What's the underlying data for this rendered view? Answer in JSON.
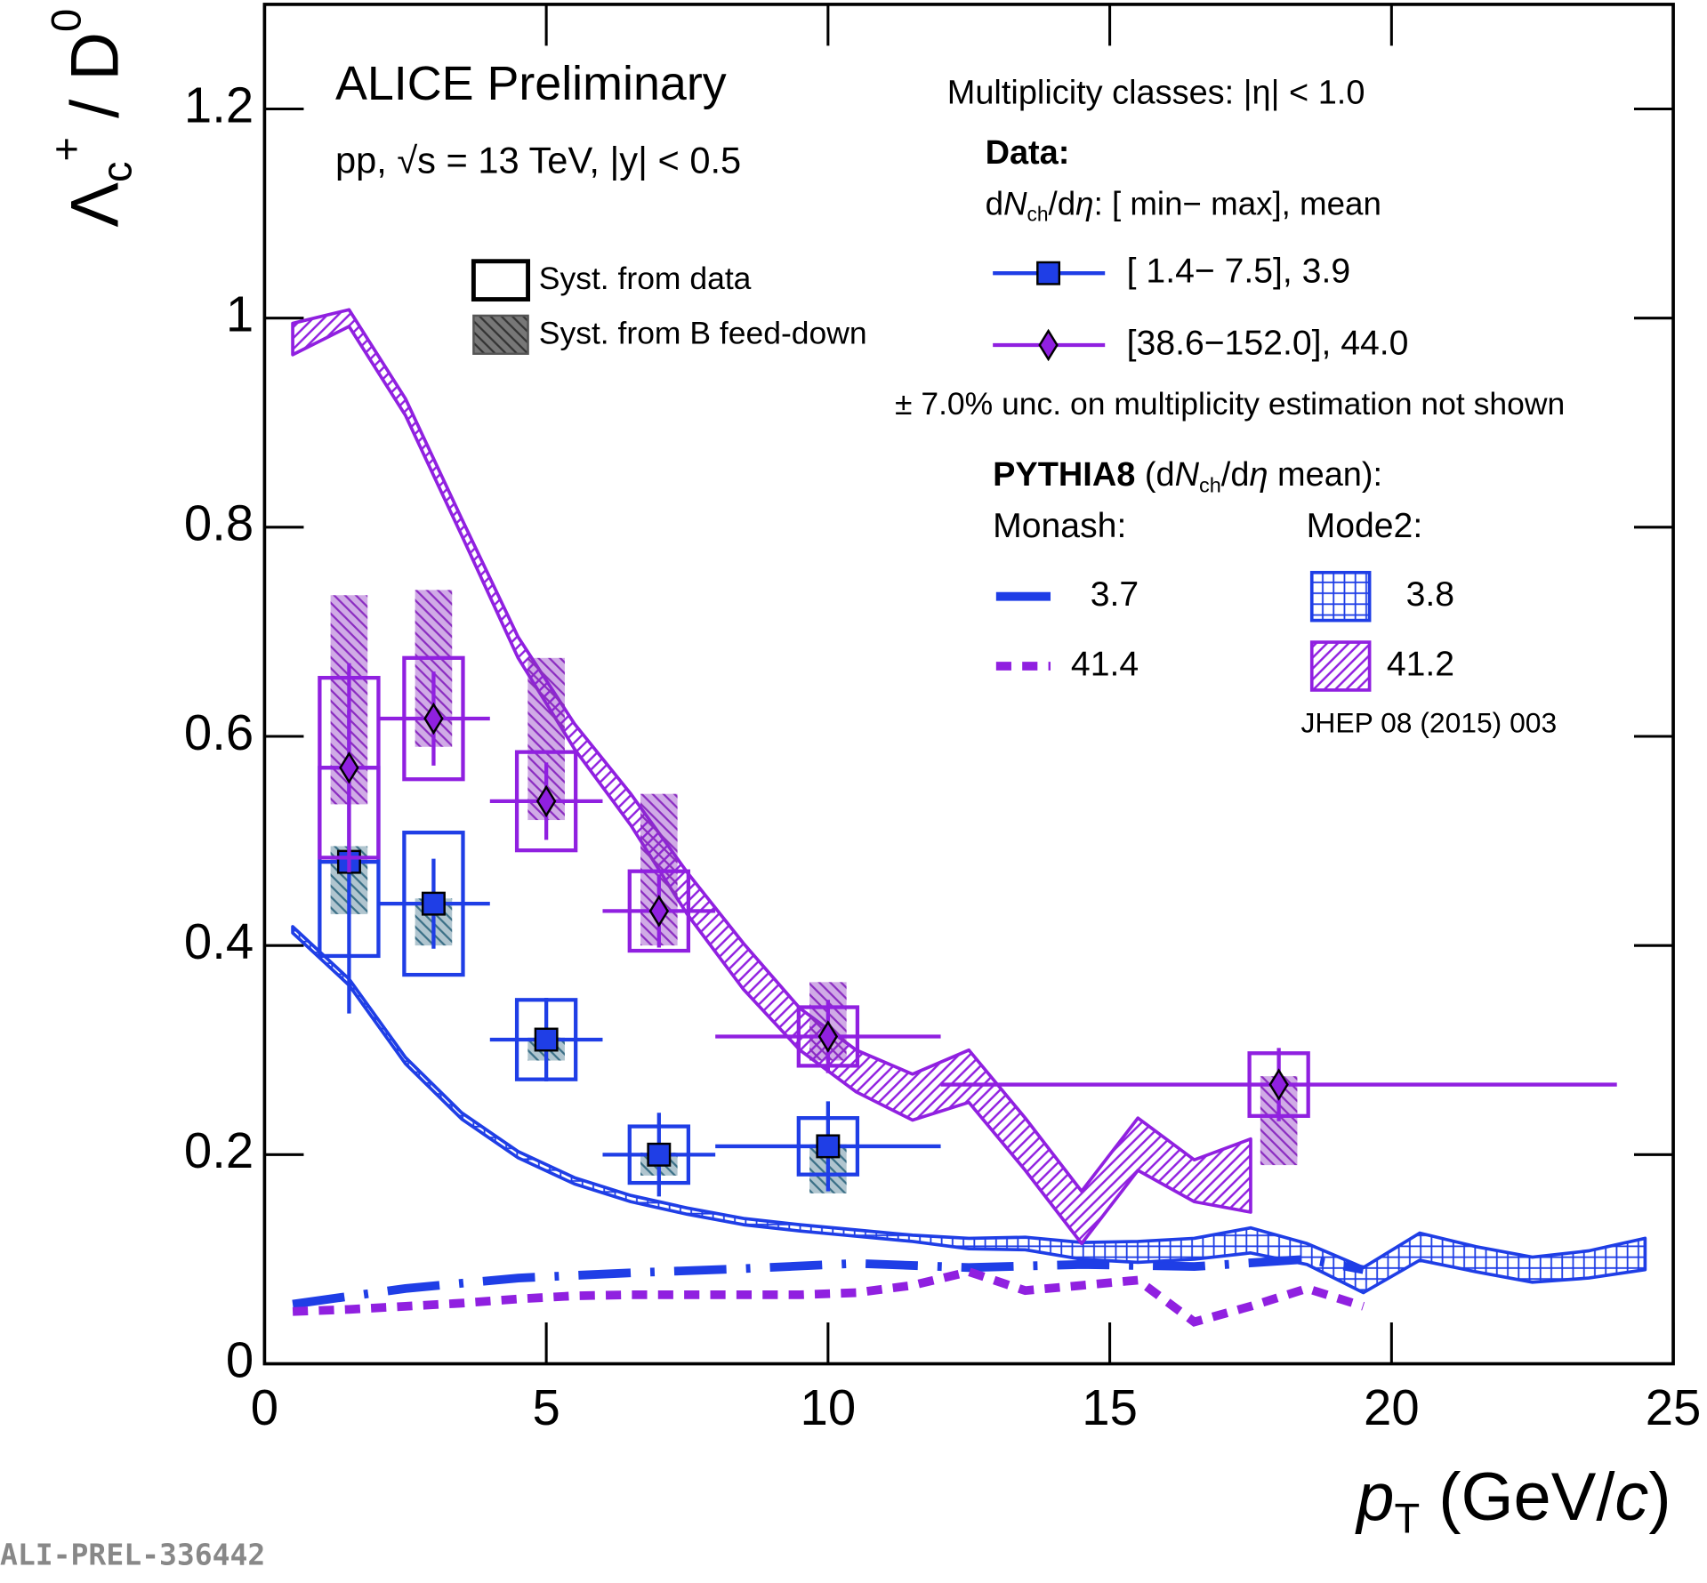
{
  "chart_data": {
    "type": "errorbar",
    "title": "ALICE Preliminary",
    "subtitle": "pp, √s = 13 TeV, |y| < 0.5",
    "xlabel": [
      "p",
      "T",
      " (GeV/",
      "c",
      ")"
    ],
    "ylabel": [
      "Λ",
      "c",
      "+",
      " / D",
      "0"
    ],
    "xlim": [
      0,
      25
    ],
    "ylim": [
      0,
      1.3
    ],
    "xticks": [
      0,
      5,
      10,
      15,
      20,
      25
    ],
    "yticks": [
      0,
      0.2,
      0.4,
      0.6,
      0.8,
      1,
      1.2
    ],
    "legend": {
      "syst_data": "Syst. from data",
      "syst_fd": "Syst. from B feed-down",
      "mult_title": "Multiplicity classes: |η| < 1.0",
      "data_title": "Data:",
      "data_header": [
        "d",
        "N",
        "ch",
        "/d",
        "η",
        ": [ min−   max], mean"
      ],
      "note": "± 7.0% unc. on multiplicity estimation not shown",
      "model_header": [
        "PYTHIA8",
        " (d",
        "N",
        "ch",
        "/d",
        "η",
        " mean):"
      ],
      "monash": "Monash:",
      "mode2": "Mode2:",
      "reference": "JHEP 08 (2015) 003"
    },
    "watermark": "ALI-PREL-336442",
    "series": [
      {
        "name": "[  1.4−    7.5],   3.9",
        "color": "#1f3ee6",
        "fd_color": "#3a6f86",
        "marker": "square",
        "x": [
          1.5,
          3,
          5,
          7,
          10
        ],
        "x_low": [
          1,
          2,
          4,
          6,
          8
        ],
        "x_high": [
          2,
          4,
          6,
          8,
          12
        ],
        "values": [
          0.48,
          0.44,
          0.31,
          0.2,
          0.208
        ],
        "stat_err": [
          0.145,
          0.043,
          0.04,
          0.04,
          0.043
        ],
        "syst_err": [
          0.09,
          0.068,
          0.038,
          0.027,
          0.027
        ],
        "fd_down": [
          0.05,
          0.04,
          0.02,
          0.02,
          0.045
        ],
        "fd_up": [
          0.015,
          0.005,
          0.002,
          0.002,
          0.002
        ]
      },
      {
        "name": "[38.6−152.0], 44.0",
        "color": "#9020e0",
        "fd_color": "#8a2cc0",
        "marker": "diamond",
        "x": [
          1.5,
          3,
          5,
          7,
          10,
          18
        ],
        "x_low": [
          1,
          2,
          4,
          6,
          8,
          12
        ],
        "x_high": [
          2,
          4,
          6,
          8,
          12,
          24
        ],
        "values": [
          0.57,
          0.617,
          0.538,
          0.433,
          0.313,
          0.267
        ],
        "stat_err": [
          0.1,
          0.045,
          0.037,
          0.035,
          0.035,
          0.035
        ],
        "syst_err": [
          0.086,
          0.058,
          0.047,
          0.038,
          0.028,
          0.03
        ],
        "fd_down": [
          0.035,
          0.027,
          0.018,
          0.033,
          0.023,
          0.077
        ],
        "fd_up": [
          0.165,
          0.123,
          0.137,
          0.112,
          0.052,
          0.008
        ]
      }
    ],
    "models": [
      {
        "name": "3.7",
        "color": "#1f3ee6",
        "style": "line",
        "dash": "dash-dot",
        "x": [
          0.5,
          2.5,
          4.5,
          6.5,
          8.5,
          10.5,
          12.5,
          14.5,
          16.5,
          18.5,
          19.5
        ],
        "values": [
          0.057,
          0.072,
          0.082,
          0.087,
          0.091,
          0.096,
          0.092,
          0.095,
          0.093,
          0.1,
          0.09
        ]
      },
      {
        "name": "41.4",
        "color": "#9020e0",
        "style": "line",
        "dash": "dot",
        "x": [
          0.5,
          1.5,
          2.5,
          3.5,
          4.5,
          5.5,
          6.5,
          7.5,
          8.5,
          9.5,
          10.5,
          11.5,
          12.5,
          13.5,
          14.5,
          15.5,
          16.5,
          17.5,
          18.5,
          19.5
        ],
        "values": [
          0.05,
          0.052,
          0.055,
          0.058,
          0.062,
          0.065,
          0.066,
          0.066,
          0.066,
          0.066,
          0.068,
          0.075,
          0.088,
          0.07,
          0.075,
          0.08,
          0.04,
          0.055,
          0.072,
          0.055
        ]
      },
      {
        "name": "3.8",
        "color": "#1f3ee6",
        "style": "band",
        "hatch": "grid",
        "x": [
          0.5,
          1.5,
          2.5,
          3.5,
          4.5,
          5.5,
          6.5,
          7.5,
          8.5,
          9.5,
          10.5,
          11.5,
          12.5,
          13.5,
          14.5,
          15.5,
          16.5,
          17.5,
          18.5,
          19.5,
          20.5,
          21.5,
          22.5,
          23.5,
          24.5
        ],
        "values": [
          0.415,
          0.365,
          0.29,
          0.237,
          0.2,
          0.175,
          0.158,
          0.146,
          0.136,
          0.13,
          0.125,
          0.12,
          0.115,
          0.115,
          0.108,
          0.107,
          0.11,
          0.118,
          0.105,
          0.08,
          0.112,
          0.1,
          0.09,
          0.095,
          0.105
        ],
        "band": [
          0.003,
          0.003,
          0.003,
          0.003,
          0.003,
          0.003,
          0.003,
          0.003,
          0.003,
          0.003,
          0.003,
          0.003,
          0.005,
          0.006,
          0.008,
          0.01,
          0.01,
          0.012,
          0.01,
          0.012,
          0.013,
          0.012,
          0.012,
          0.013,
          0.015
        ]
      },
      {
        "name": "41.2",
        "color": "#9020e0",
        "style": "band",
        "hatch": "diagonal",
        "x": [
          0.5,
          1.5,
          2.5,
          3.5,
          4.5,
          5.5,
          6.5,
          7.5,
          8.5,
          9.5,
          10.5,
          11.5,
          12.5,
          13.5,
          14.5,
          15.5,
          16.5,
          17.5
        ],
        "values": [
          0.98,
          1.0,
          0.915,
          0.8,
          0.685,
          0.6,
          0.53,
          0.45,
          0.38,
          0.32,
          0.28,
          0.255,
          0.275,
          0.21,
          0.14,
          0.21,
          0.175,
          0.18
        ],
        "band": [
          0.015,
          0.008,
          0.008,
          0.008,
          0.01,
          0.012,
          0.015,
          0.02,
          0.022,
          0.02,
          0.02,
          0.022,
          0.025,
          0.025,
          0.025,
          0.025,
          0.02,
          0.035
        ]
      }
    ]
  }
}
